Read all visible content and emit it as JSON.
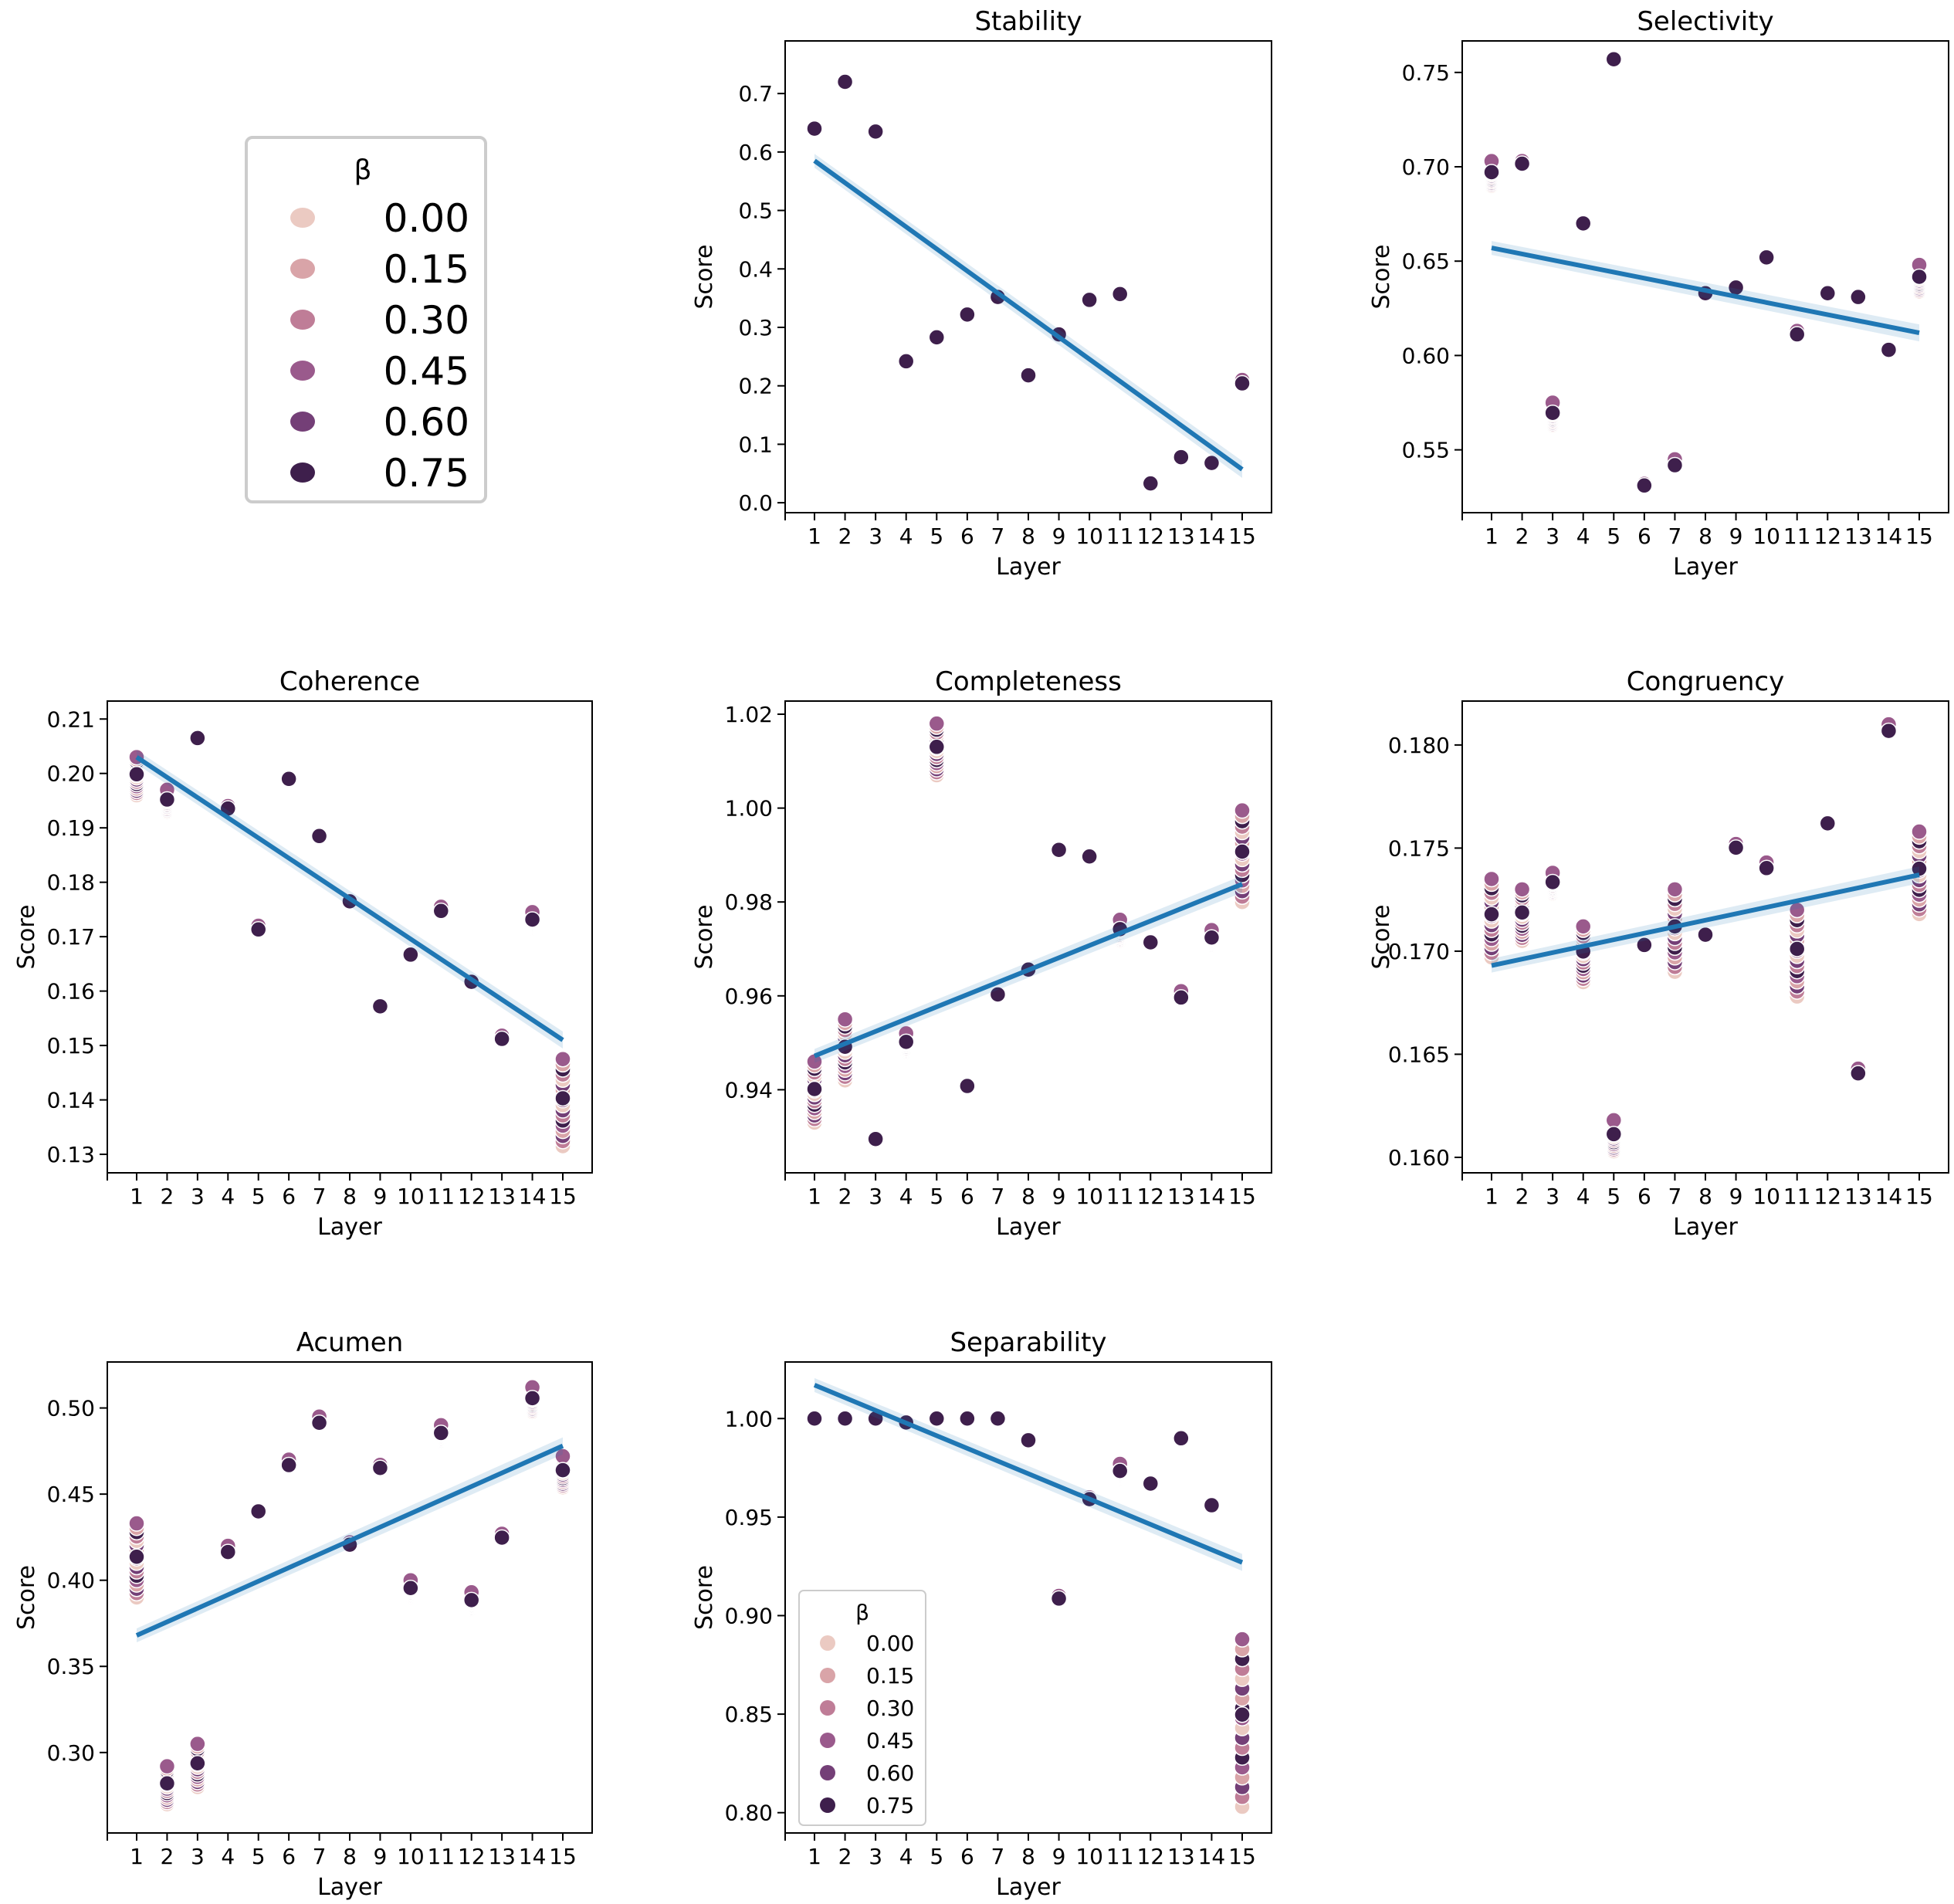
{
  "chart_data": {
    "type": "scatter",
    "hue_title": "β",
    "hue_levels": [
      "0.00",
      "0.15",
      "0.30",
      "0.45",
      "0.60",
      "0.75"
    ],
    "hue_colors": [
      "#ebcac2",
      "#d9a4a8",
      "#bf7d97",
      "#9a5a8c",
      "#743f77",
      "#3e1f4c"
    ],
    "regression_color": "#1f77b4",
    "xlabel": "Layer",
    "ylabel": "Score",
    "x_ticks": [
      1,
      2,
      3,
      4,
      5,
      6,
      7,
      8,
      9,
      10,
      11,
      12,
      13,
      14,
      15
    ],
    "tick_labels": {
      "Stability": [
        "0.0",
        "0.1",
        "0.2",
        "0.3",
        "0.4",
        "0.5",
        "0.6",
        "0.7"
      ],
      "Selectivity": [
        "0.55",
        "0.60",
        "0.65",
        "0.70",
        "0.75"
      ],
      "Coherence": [
        "0.13",
        "0.14",
        "0.15",
        "0.16",
        "0.17",
        "0.18",
        "0.19",
        "0.20",
        "0.21"
      ],
      "Completeness": [
        "0.94",
        "0.96",
        "0.98",
        "1.00",
        "1.02"
      ],
      "Congruency": [
        "0.160",
        "0.165",
        "0.170",
        "0.175",
        "0.180"
      ],
      "Acumen": [
        "0.30",
        "0.35",
        "0.40",
        "0.45",
        "0.50"
      ],
      "Separability": [
        "0.80",
        "0.85",
        "0.90",
        "0.95",
        "1.00"
      ]
    },
    "x_tick_labels": [
      "1",
      "2",
      "3",
      "4",
      "5",
      "6",
      "7",
      "8",
      "9",
      "10",
      "11",
      "12",
      "13",
      "14",
      "15"
    ],
    "panels": [
      {
        "title": "Stability",
        "ylim": [
          -0.017,
          0.79
        ],
        "yticks": [
          0.0,
          0.1,
          0.2,
          0.3,
          0.4,
          0.5,
          0.6,
          0.7
        ],
        "regression": [
          0.585,
          0.057
        ],
        "points": [
          [
            1,
            0.64,
            0.64
          ],
          [
            2,
            0.72,
            0.72
          ],
          [
            3,
            0.635,
            0.635
          ],
          [
            4,
            0.242,
            0.242
          ],
          [
            5,
            0.283,
            0.283
          ],
          [
            6,
            0.322,
            0.322
          ],
          [
            7,
            0.352,
            0.352
          ],
          [
            8,
            0.218,
            0.218
          ],
          [
            9,
            0.288,
            0.288
          ],
          [
            10,
            0.347,
            0.347
          ],
          [
            11,
            0.357,
            0.357
          ],
          [
            12,
            0.033,
            0.033
          ],
          [
            13,
            0.078,
            0.078
          ],
          [
            14,
            0.068,
            0.068
          ],
          [
            15,
            0.197,
            0.21
          ]
        ]
      },
      {
        "title": "Selectivity",
        "ylim": [
          0.5167,
          0.7667
        ],
        "yticks": [
          0.55,
          0.6,
          0.65,
          0.7,
          0.75
        ],
        "regression": [
          0.657,
          0.612
        ],
        "points": [
          [
            1,
            0.69,
            0.703
          ],
          [
            2,
            0.7,
            0.703
          ],
          [
            3,
            0.563,
            0.575
          ],
          [
            4,
            0.67,
            0.67
          ],
          [
            5,
            0.757,
            0.757
          ],
          [
            6,
            0.53,
            0.532
          ],
          [
            7,
            0.538,
            0.545
          ],
          [
            8,
            0.633,
            0.633
          ],
          [
            9,
            0.636,
            0.636
          ],
          [
            10,
            0.652,
            0.652
          ],
          [
            11,
            0.609,
            0.613
          ],
          [
            12,
            0.633,
            0.633
          ],
          [
            13,
            0.631,
            0.631
          ],
          [
            14,
            0.603,
            0.603
          ],
          [
            15,
            0.634,
            0.648
          ]
        ]
      },
      {
        "title": "Coherence",
        "ylim": [
          0.1266,
          0.2133
        ],
        "yticks": [
          0.13,
          0.14,
          0.15,
          0.16,
          0.17,
          0.18,
          0.19,
          0.2,
          0.21
        ],
        "regression": [
          0.203,
          0.151
        ],
        "points": [
          [
            1,
            0.196,
            0.203
          ],
          [
            2,
            0.193,
            0.197
          ],
          [
            3,
            0.2065,
            0.2065
          ],
          [
            4,
            0.193,
            0.194
          ],
          [
            5,
            0.1705,
            0.172
          ],
          [
            6,
            0.199,
            0.199
          ],
          [
            7,
            0.1885,
            0.1885
          ],
          [
            8,
            0.1765,
            0.1765
          ],
          [
            9,
            0.1572,
            0.1572
          ],
          [
            10,
            0.1667,
            0.1667
          ],
          [
            11,
            0.1738,
            0.1755
          ],
          [
            12,
            0.1617,
            0.1617
          ],
          [
            13,
            0.1505,
            0.1518
          ],
          [
            14,
            0.1715,
            0.1745
          ],
          [
            15,
            0.1315,
            0.1475
          ]
        ]
      },
      {
        "title": "Completeness",
        "ylim": [
          0.9223,
          1.0228
        ],
        "yticks": [
          0.94,
          0.96,
          0.98,
          1.0,
          1.02
        ],
        "regression": [
          0.9472,
          0.9838
        ],
        "points": [
          [
            1,
            0.933,
            0.946
          ],
          [
            2,
            0.942,
            0.955
          ],
          [
            3,
            0.9295,
            0.9295
          ],
          [
            4,
            0.948,
            0.952
          ],
          [
            5,
            1.007,
            1.018
          ],
          [
            6,
            0.9408,
            0.9408
          ],
          [
            7,
            0.9603,
            0.9603
          ],
          [
            8,
            0.9656,
            0.9656
          ],
          [
            9,
            0.9911,
            0.9911
          ],
          [
            10,
            0.9897,
            0.9897
          ],
          [
            11,
            0.9718,
            0.9762
          ],
          [
            12,
            0.9714,
            0.9714
          ],
          [
            13,
            0.958,
            0.961
          ],
          [
            14,
            0.9705,
            0.974
          ],
          [
            15,
            0.98,
            0.9995
          ]
        ]
      },
      {
        "title": "Congruency",
        "ylim": [
          0.15925,
          0.18213
        ],
        "yticks": [
          0.16,
          0.165,
          0.17,
          0.175,
          0.18
        ],
        "regression": [
          0.1693,
          0.1737
        ],
        "points": [
          [
            1,
            0.1697,
            0.1735
          ],
          [
            2,
            0.1705,
            0.173
          ],
          [
            3,
            0.1728,
            0.1738
          ],
          [
            4,
            0.1685,
            0.1712
          ],
          [
            5,
            0.1603,
            0.1618
          ],
          [
            6,
            0.1703,
            0.1703
          ],
          [
            7,
            0.169,
            0.173
          ],
          [
            8,
            0.1708,
            0.1708
          ],
          [
            9,
            0.1748,
            0.1752
          ],
          [
            10,
            0.1737,
            0.1743
          ],
          [
            11,
            0.1678,
            0.172
          ],
          [
            12,
            0.1762,
            0.1762
          ],
          [
            13,
            0.1638,
            0.1643
          ],
          [
            14,
            0.1803,
            0.181
          ],
          [
            15,
            0.1718,
            0.1758
          ]
        ]
      },
      {
        "title": "Acumen",
        "ylim": [
          0.2533,
          0.5267
        ],
        "yticks": [
          0.3,
          0.35,
          0.4,
          0.45,
          0.5
        ],
        "regression": [
          0.368,
          0.478
        ],
        "points": [
          [
            1,
            0.39,
            0.433
          ],
          [
            2,
            0.27,
            0.292
          ],
          [
            3,
            0.28,
            0.305
          ],
          [
            4,
            0.412,
            0.42
          ],
          [
            5,
            0.44,
            0.44
          ],
          [
            6,
            0.463,
            0.47
          ],
          [
            7,
            0.487,
            0.495
          ],
          [
            8,
            0.419,
            0.422
          ],
          [
            9,
            0.463,
            0.467
          ],
          [
            10,
            0.39,
            0.4
          ],
          [
            11,
            0.48,
            0.49
          ],
          [
            12,
            0.383,
            0.393
          ],
          [
            13,
            0.422,
            0.427
          ],
          [
            14,
            0.498,
            0.512
          ],
          [
            15,
            0.454,
            0.472
          ]
        ]
      },
      {
        "title": "Separability",
        "ylim": [
          0.7897,
          1.0287
        ],
        "yticks": [
          0.8,
          0.85,
          0.9,
          0.95,
          1.0
        ],
        "regression": [
          1.017,
          0.927
        ],
        "points": [
          [
            1,
            1.0,
            1.0
          ],
          [
            2,
            1.0,
            1.0
          ],
          [
            3,
            1.0,
            1.0
          ],
          [
            4,
            0.998,
            0.998
          ],
          [
            5,
            1.0,
            1.0
          ],
          [
            6,
            1.0,
            1.0
          ],
          [
            7,
            1.0,
            1.0
          ],
          [
            8,
            0.989,
            0.989
          ],
          [
            9,
            0.907,
            0.91
          ],
          [
            10,
            0.958,
            0.96
          ],
          [
            11,
            0.969,
            0.977
          ],
          [
            12,
            0.967,
            0.967
          ],
          [
            13,
            0.99,
            0.99
          ],
          [
            14,
            0.956,
            0.956
          ],
          [
            15,
            0.803,
            0.888
          ]
        ]
      }
    ]
  }
}
